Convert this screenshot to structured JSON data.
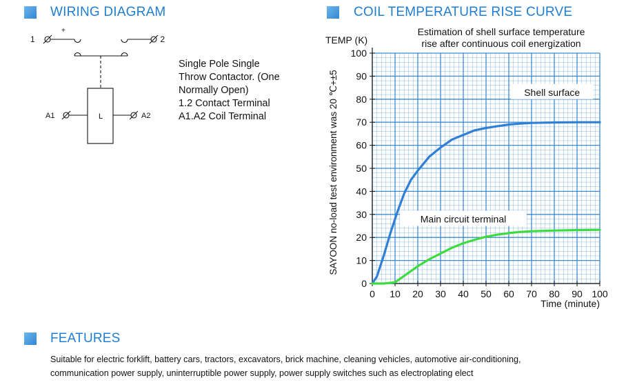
{
  "wiring": {
    "title": "WIRING DIAGRAM",
    "terminal_1": "1",
    "terminal_2": "2",
    "plus_sign": "+",
    "coil_label": "L",
    "terminal_a1": "A1",
    "terminal_a2": "A2",
    "description": [
      "Single Pole Single",
      "Throw Contactor. (One",
      "Normally Open)",
      "1.2 Contact Terminal",
      "A1.A2 Coil Terminal"
    ]
  },
  "chart_section": {
    "title": "COIL TEMPERATURE RISE CURVE"
  },
  "chart_data": {
    "type": "line",
    "title": [
      "Estimation of shell surface temperature",
      "rise after continuous coil energization"
    ],
    "ylabel": "TEMP (K)",
    "ylabel_side": "SAYOON no-load test environment was 20  ℃+±5",
    "xlabel": "Time (minute)",
    "xlim": [
      0,
      100
    ],
    "ylim": [
      0,
      100
    ],
    "x_ticks": [
      0,
      10,
      20,
      30,
      40,
      50,
      60,
      70,
      80,
      90,
      100
    ],
    "y_ticks": [
      0,
      10,
      20,
      30,
      40,
      50,
      60,
      70,
      80,
      90,
      100
    ],
    "grid": true,
    "grid_color": "#2a7fcf",
    "series": [
      {
        "name": "Shell surface",
        "color": "#2f7fd6",
        "x": [
          0,
          2,
          5,
          8,
          11,
          14,
          17,
          20,
          25,
          30,
          35,
          40,
          45,
          50,
          55,
          60,
          65,
          70,
          80,
          90,
          100
        ],
        "y": [
          0,
          3,
          12,
          22,
          31,
          39,
          45,
          49,
          55,
          59,
          62.5,
          64.5,
          66.5,
          67.5,
          68.3,
          69,
          69.4,
          69.7,
          69.9,
          70,
          70
        ]
      },
      {
        "name": "Main circuit terminal",
        "color": "#3ddc3d",
        "x": [
          0,
          5,
          10,
          15,
          20,
          25,
          30,
          35,
          40,
          45,
          50,
          55,
          60,
          65,
          70,
          80,
          90,
          100
        ],
        "y": [
          0,
          0,
          0.5,
          4,
          7.5,
          10.5,
          13,
          15.5,
          17.5,
          19,
          20.3,
          21.2,
          21.9,
          22.4,
          22.7,
          23,
          23.2,
          23.3
        ]
      }
    ]
  },
  "features": {
    "title": "FEATURES",
    "lines": [
      "Suitable for electric forklift, battery cars, tractors, excavators, brick machine, cleaning vehicles, automotive air-conditioning,",
      "communication power supply, uninterruptible power supply, power supply switches such as electroplating elect"
    ]
  },
  "colors": {
    "accent": "#1f7ed2",
    "icon": "#2f86d3"
  }
}
